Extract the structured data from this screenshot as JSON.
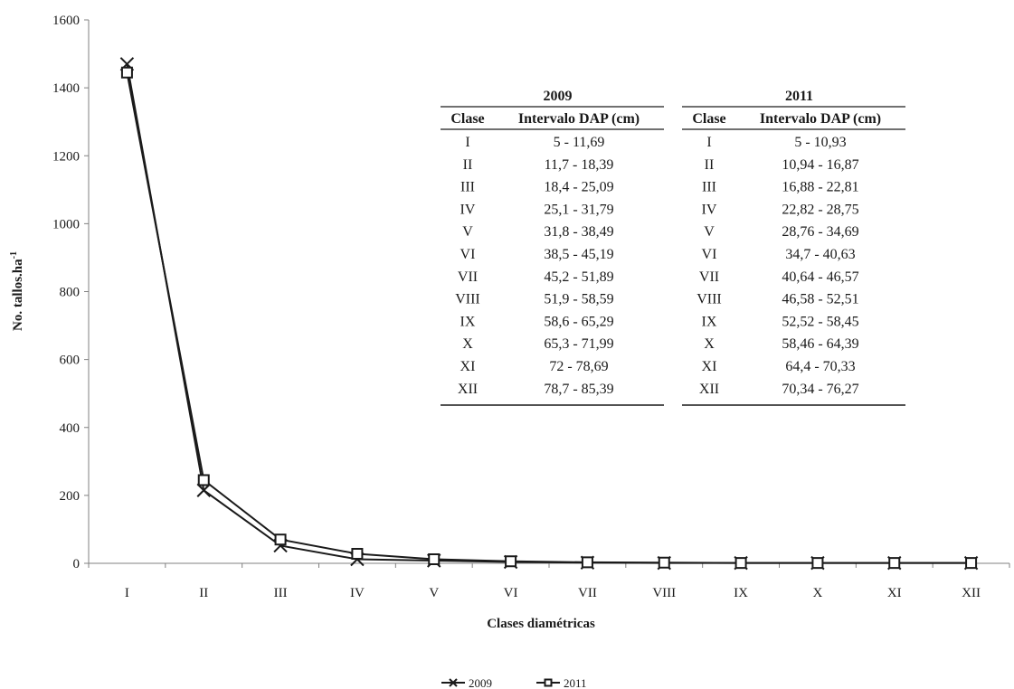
{
  "chart_data": {
    "type": "line",
    "xlabel": "Clases diamétricas",
    "ylabel": "No. tallos.ha",
    "ylabel_sup": "-1",
    "ylim": [
      0,
      1600
    ],
    "yticks": [
      0,
      200,
      400,
      600,
      800,
      1000,
      1200,
      1400,
      1600
    ],
    "categories": [
      "I",
      "II",
      "III",
      "IV",
      "V",
      "VI",
      "VII",
      "VIII",
      "IX",
      "X",
      "XI",
      "XII"
    ],
    "grid": false,
    "legend_position": "bottom",
    "series": [
      {
        "name": "2009",
        "marker": "x",
        "values": [
          1470,
          215,
          52,
          12,
          8,
          4,
          2,
          1,
          1,
          1,
          1,
          1
        ]
      },
      {
        "name": "2011",
        "marker": "square",
        "values": [
          1445,
          245,
          70,
          28,
          12,
          6,
          3,
          2,
          1,
          1,
          1,
          1
        ]
      }
    ],
    "table": {
      "groups": [
        {
          "year": "2009",
          "col_clase": "Clase",
          "col_intervalo": "Intervalo DAP (cm)",
          "rows": [
            [
              "I",
              "5 - 11,69"
            ],
            [
              "II",
              "11,7 - 18,39"
            ],
            [
              "III",
              "18,4 - 25,09"
            ],
            [
              "IV",
              "25,1 - 31,79"
            ],
            [
              "V",
              "31,8 - 38,49"
            ],
            [
              "VI",
              "38,5 - 45,19"
            ],
            [
              "VII",
              "45,2 - 51,89"
            ],
            [
              "VIII",
              "51,9 - 58,59"
            ],
            [
              "IX",
              "58,6 - 65,29"
            ],
            [
              "X",
              "65,3 - 71,99"
            ],
            [
              "XI",
              "72 - 78,69"
            ],
            [
              "XII",
              "78,7 - 85,39"
            ]
          ]
        },
        {
          "year": "2011",
          "col_clase": "Clase",
          "col_intervalo": "Intervalo DAP (cm)",
          "rows": [
            [
              "I",
              "5 - 10,93"
            ],
            [
              "II",
              "10,94 - 16,87"
            ],
            [
              "III",
              "16,88 - 22,81"
            ],
            [
              "IV",
              "22,82 - 28,75"
            ],
            [
              "V",
              "28,76 - 34,69"
            ],
            [
              "VI",
              "34,7 - 40,63"
            ],
            [
              "VII",
              "40,64 - 46,57"
            ],
            [
              "VIII",
              "46,58 - 52,51"
            ],
            [
              "IX",
              "52,52 - 58,45"
            ],
            [
              "X",
              "58,46 - 64,39"
            ],
            [
              "XI",
              "64,4 - 70,33"
            ],
            [
              "XII",
              "70,34 - 76,27"
            ]
          ]
        }
      ]
    }
  }
}
